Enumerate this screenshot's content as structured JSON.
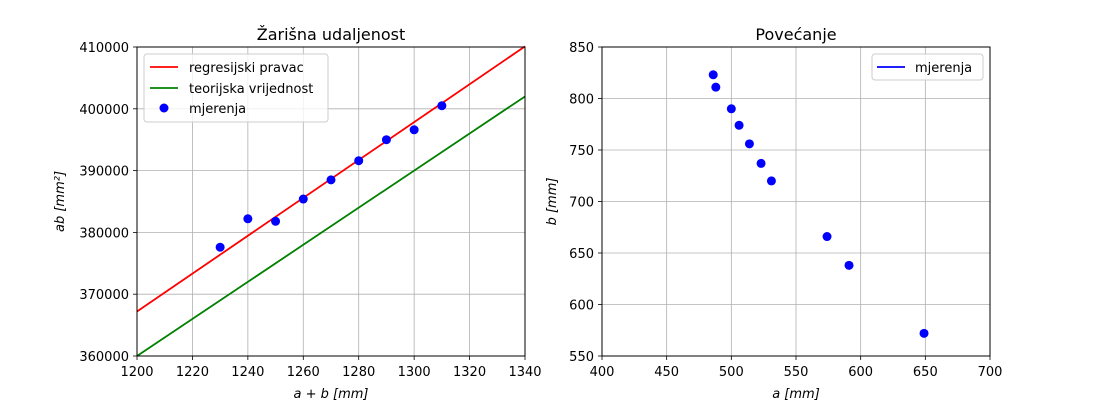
{
  "chart_data": [
    {
      "type": "scatter",
      "title": "Žarišna udaljenost",
      "xlabel": "a + b [mm]",
      "ylabel": "ab [mm²]",
      "xlim": [
        1200,
        1340
      ],
      "ylim": [
        360000,
        410000
      ],
      "xticks": [
        "1200",
        "1220",
        "1240",
        "1260",
        "1280",
        "1300",
        "1320",
        "1340"
      ],
      "yticks": [
        "360000",
        "370000",
        "380000",
        "390000",
        "400000",
        "410000"
      ],
      "grid": true,
      "legend_position": "top-left",
      "series": [
        {
          "name": "regresijski pravac",
          "type": "line",
          "color": "#ff0000",
          "x": [
            1200,
            1340
          ],
          "y": [
            367200,
            410100
          ]
        },
        {
          "name": "teorijska vrijednost",
          "type": "line",
          "color": "#008000",
          "x": [
            1200,
            1340
          ],
          "y": [
            360000,
            402000
          ]
        },
        {
          "name": "mjerenja",
          "type": "scatter",
          "color": "#0000ff",
          "x": [
            1230,
            1240,
            1250,
            1260,
            1270,
            1280,
            1290,
            1300,
            1310
          ],
          "y": [
            377600,
            382200,
            381800,
            385400,
            388500,
            391600,
            395000,
            396600,
            400500
          ]
        }
      ]
    },
    {
      "type": "scatter",
      "title": "Povećanje",
      "xlabel": "a [mm]",
      "ylabel": "b [mm]",
      "xlim": [
        400,
        700
      ],
      "ylim": [
        550,
        850
      ],
      "xticks": [
        "400",
        "450",
        "500",
        "550",
        "600",
        "650",
        "700"
      ],
      "yticks": [
        "550",
        "600",
        "650",
        "700",
        "750",
        "800",
        "850"
      ],
      "grid": true,
      "legend_position": "top-right",
      "legend_entries": [
        {
          "name": "mjerenja",
          "marker": "line",
          "color": "#0000ff"
        }
      ],
      "series": [
        {
          "name": "mjerenja",
          "type": "scatter",
          "color": "#0000ff",
          "x": [
            486,
            488,
            500,
            506,
            514,
            523,
            531,
            574,
            591,
            649
          ],
          "y": [
            823,
            811,
            790,
            774,
            756,
            737,
            720,
            666,
            638,
            572
          ]
        }
      ]
    }
  ]
}
